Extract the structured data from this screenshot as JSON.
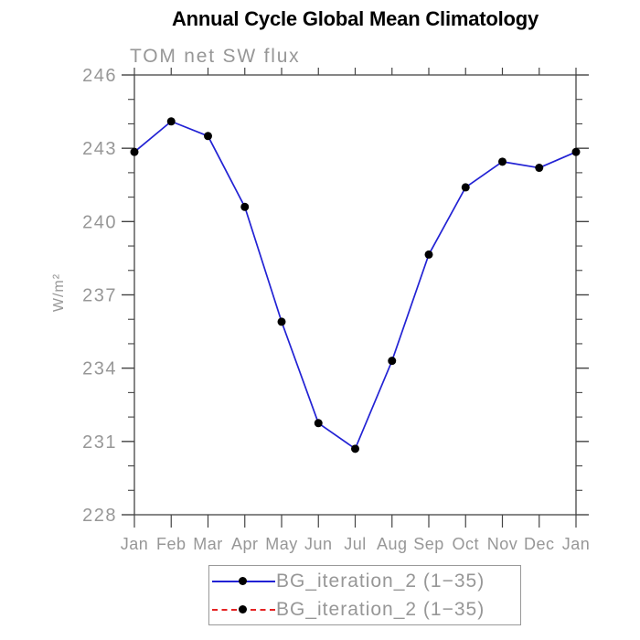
{
  "window": {
    "background": "#ffffff"
  },
  "chart_data": {
    "type": "line",
    "title": "Annual Cycle Global Mean Climatology",
    "subtitle": "TOM net SW flux",
    "ylabel": "W/m²",
    "xlabel": "",
    "categories": [
      "Jan",
      "Feb",
      "Mar",
      "Apr",
      "May",
      "Jun",
      "Jul",
      "Aug",
      "Sep",
      "Oct",
      "Nov",
      "Dec",
      "Jan"
    ],
    "series": [
      {
        "name": "BG_iteration_2 (1−35)",
        "values": [
          242.85,
          244.1,
          243.5,
          240.6,
          235.9,
          231.75,
          230.7,
          234.3,
          238.65,
          241.4,
          242.45,
          242.2,
          242.85
        ],
        "line_color": "#2222d4",
        "line_style": "solid",
        "marker": "filled-circle",
        "marker_color": "#000000"
      }
    ],
    "ylim": [
      228,
      246
    ],
    "ytick_major_step": 3,
    "ytick_minor_step": 1,
    "grid": false,
    "legend": {
      "position": "below-plot",
      "entries": [
        {
          "label": "BG_iteration_2 (1−35)",
          "line_color": "#2222d4",
          "line_style": "solid",
          "marker_color": "#000000"
        },
        {
          "label": "BG_iteration_2 (1−35)",
          "line_color": "#e52222",
          "line_style": "dashed",
          "marker_color": "#000000"
        }
      ]
    }
  },
  "colors": {
    "title": "#000000",
    "subtitle": "#979797",
    "axis": "#444444",
    "tick_label": "#979797",
    "legend_border": "#999999",
    "legend_text": "#979797"
  }
}
